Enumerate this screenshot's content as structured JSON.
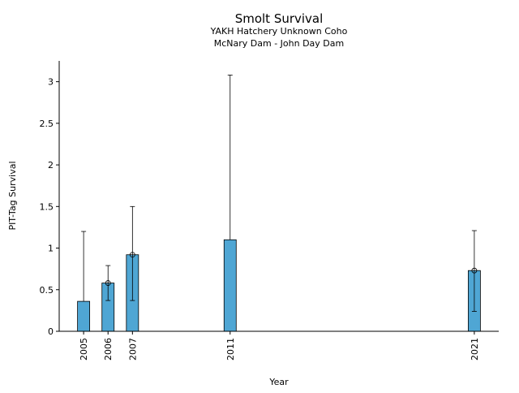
{
  "chart_data": {
    "type": "bar",
    "title": "Smolt Survival",
    "subtitles": [
      "YAKH Hatchery Unknown Coho",
      "McNary Dam - John Day Dam"
    ],
    "xlabel": "Year",
    "ylabel": "PIT-Tag Survival",
    "x": [
      2005,
      2006,
      2007,
      2011,
      2021
    ],
    "values": [
      0.36,
      0.58,
      0.92,
      1.1,
      0.73
    ],
    "error_low": [
      null,
      0.37,
      0.37,
      null,
      0.24
    ],
    "error_high": [
      1.2,
      0.79,
      1.5,
      3.08,
      1.21
    ],
    "markers": [
      null,
      0.58,
      0.92,
      null,
      0.73
    ],
    "ylim": [
      0,
      3.25
    ],
    "xlim": [
      2004.0,
      2022.0
    ],
    "yticks": [
      0,
      0.5,
      1,
      1.5,
      2,
      2.5,
      3
    ],
    "ytick_labels": [
      "0",
      "0.5",
      "1",
      "1.5",
      "2",
      "2.5",
      "3"
    ],
    "xtick_labels": [
      "2005",
      "2006",
      "2007",
      "2011",
      "2021"
    ],
    "bar_color": "#4FA6D4",
    "grid": false,
    "legend": "none"
  }
}
